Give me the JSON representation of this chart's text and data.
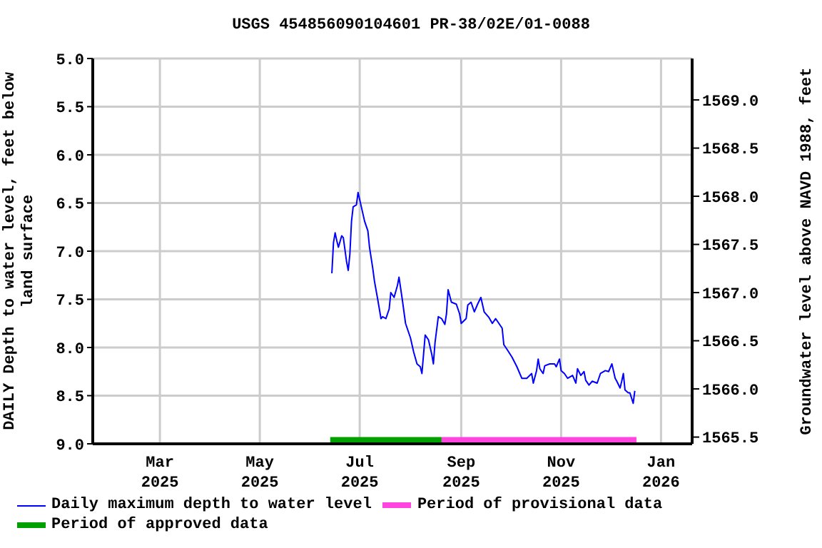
{
  "chart_data": {
    "type": "line",
    "title": "USGS 454856090104601 PR-38/02E/01-0088",
    "ylabel": "DAILY Depth to water level, feet below land surface",
    "y2label": "Groundwater level above NAVD 1988, feet",
    "xlim": [
      "2025-01-19",
      "2026-01-20"
    ],
    "xticks": [
      {
        "value": "2025-03-01",
        "label": "Mar 2025"
      },
      {
        "value": "2025-05-01",
        "label": "May 2025"
      },
      {
        "value": "2025-07-01",
        "label": "Jul 2025"
      },
      {
        "value": "2025-09-01",
        "label": "Sep 2025"
      },
      {
        "value": "2025-11-01",
        "label": "Nov 2025"
      },
      {
        "value": "2026-01-01",
        "label": "Jan 2026"
      }
    ],
    "ylim": [
      9.0,
      5.0
    ],
    "yticks": [
      {
        "value": 5,
        "label": "5.0"
      },
      5.5,
      {
        "value": 6,
        "label": "6.0"
      },
      6.5,
      {
        "value": 7,
        "label": "7.0"
      },
      7.5,
      {
        "value": 8,
        "label": "8.0"
      },
      8.5,
      {
        "value": 9,
        "label": "9.0"
      }
    ],
    "y2lim": [
      1565.43,
      1569.43
    ],
    "y2ticks": [
      1565.5,
      {
        "value": 1566,
        "label": "1566.0"
      },
      1566.5,
      {
        "value": 1567,
        "label": "1567.0"
      },
      1567.5,
      {
        "value": 1568,
        "label": "1568.0"
      },
      1568.5,
      {
        "value": 1569,
        "label": "1569.0"
      }
    ],
    "grid": true,
    "legend": "bottom",
    "series": [
      {
        "name": "Daily maximum depth to water level",
        "color": "#0000ff",
        "x": [
          "2025-06-14",
          "2025-06-15",
          "2025-06-16",
          "2025-06-17",
          "2025-06-18",
          "2025-06-20",
          "2025-06-21",
          "2025-06-23",
          "2025-06-24",
          "2025-06-25",
          "2025-06-26",
          "2025-06-27",
          "2025-06-29",
          "2025-06-30",
          "2025-07-02",
          "2025-07-04",
          "2025-07-06",
          "2025-07-07",
          "2025-07-09",
          "2025-07-10",
          "2025-07-12",
          "2025-07-14",
          "2025-07-15",
          "2025-07-17",
          "2025-07-19",
          "2025-07-20",
          "2025-07-22",
          "2025-07-24",
          "2025-07-25",
          "2025-07-27",
          "2025-07-29",
          "2025-08-01",
          "2025-08-03",
          "2025-08-05",
          "2025-08-07",
          "2025-08-08",
          "2025-08-09",
          "2025-08-10",
          "2025-08-12",
          "2025-08-14",
          "2025-08-15",
          "2025-08-16",
          "2025-08-18",
          "2025-08-20",
          "2025-08-22",
          "2025-08-23",
          "2025-08-24",
          "2025-08-26",
          "2025-08-29",
          "2025-08-31",
          "2025-09-01",
          "2025-09-04",
          "2025-09-05",
          "2025-09-07",
          "2025-09-09",
          "2025-09-11",
          "2025-09-13",
          "2025-09-15",
          "2025-09-18",
          "2025-09-20",
          "2025-09-22",
          "2025-09-24",
          "2025-09-26",
          "2025-09-27",
          "2025-09-29",
          "2025-10-02",
          "2025-10-05",
          "2025-10-08",
          "2025-10-11",
          "2025-10-14",
          "2025-10-15",
          "2025-10-17",
          "2025-10-18",
          "2025-10-19",
          "2025-10-21",
          "2025-10-22",
          "2025-10-25",
          "2025-10-28",
          "2025-10-29",
          "2025-10-31",
          "2025-11-01",
          "2025-11-03",
          "2025-11-05",
          "2025-11-08",
          "2025-11-10",
          "2025-11-11",
          "2025-11-13",
          "2025-11-15",
          "2025-11-16",
          "2025-11-18",
          "2025-11-20",
          "2025-11-23",
          "2025-11-25",
          "2025-11-28",
          "2025-11-30",
          "2025-12-02",
          "2025-12-04",
          "2025-12-05",
          "2025-12-07",
          "2025-12-08",
          "2025-12-09",
          "2025-12-10",
          "2025-12-12",
          "2025-12-13",
          "2025-12-15",
          "2025-12-16"
        ],
        "values": [
          7.23,
          6.91,
          6.81,
          6.89,
          6.96,
          6.84,
          6.86,
          7.11,
          7.2,
          7.03,
          6.69,
          6.54,
          6.52,
          6.39,
          6.54,
          6.69,
          6.79,
          6.96,
          7.18,
          7.31,
          7.5,
          7.7,
          7.68,
          7.7,
          7.6,
          7.43,
          7.48,
          7.36,
          7.27,
          7.5,
          7.75,
          7.9,
          8.05,
          8.17,
          8.2,
          8.27,
          8.07,
          7.87,
          7.92,
          8.07,
          8.17,
          7.95,
          7.68,
          7.7,
          7.76,
          7.65,
          7.4,
          7.53,
          7.55,
          7.65,
          7.75,
          7.7,
          7.56,
          7.53,
          7.63,
          7.55,
          7.48,
          7.63,
          7.69,
          7.75,
          7.7,
          7.75,
          7.8,
          7.97,
          8.02,
          8.1,
          8.2,
          8.32,
          8.32,
          8.27,
          8.37,
          8.24,
          8.12,
          8.22,
          8.27,
          8.19,
          8.17,
          8.17,
          8.2,
          8.12,
          8.24,
          8.27,
          8.32,
          8.29,
          8.37,
          8.22,
          8.29,
          8.25,
          8.34,
          8.39,
          8.35,
          8.37,
          8.27,
          8.24,
          8.25,
          8.17,
          8.32,
          8.35,
          8.42,
          8.35,
          8.27,
          8.44,
          8.47,
          8.47,
          8.58,
          8.45
        ]
      },
      {
        "name": "Period of provisional data",
        "color": "#ff44e0",
        "x": [
          "2025-08-20",
          "2025-12-17"
        ],
        "values": [
          8.96,
          8.96
        ]
      },
      {
        "name": "Period of approved data",
        "color": "#00a000",
        "x": [
          "2025-06-13",
          "2025-08-20"
        ],
        "values": [
          8.96,
          8.96
        ]
      }
    ]
  }
}
